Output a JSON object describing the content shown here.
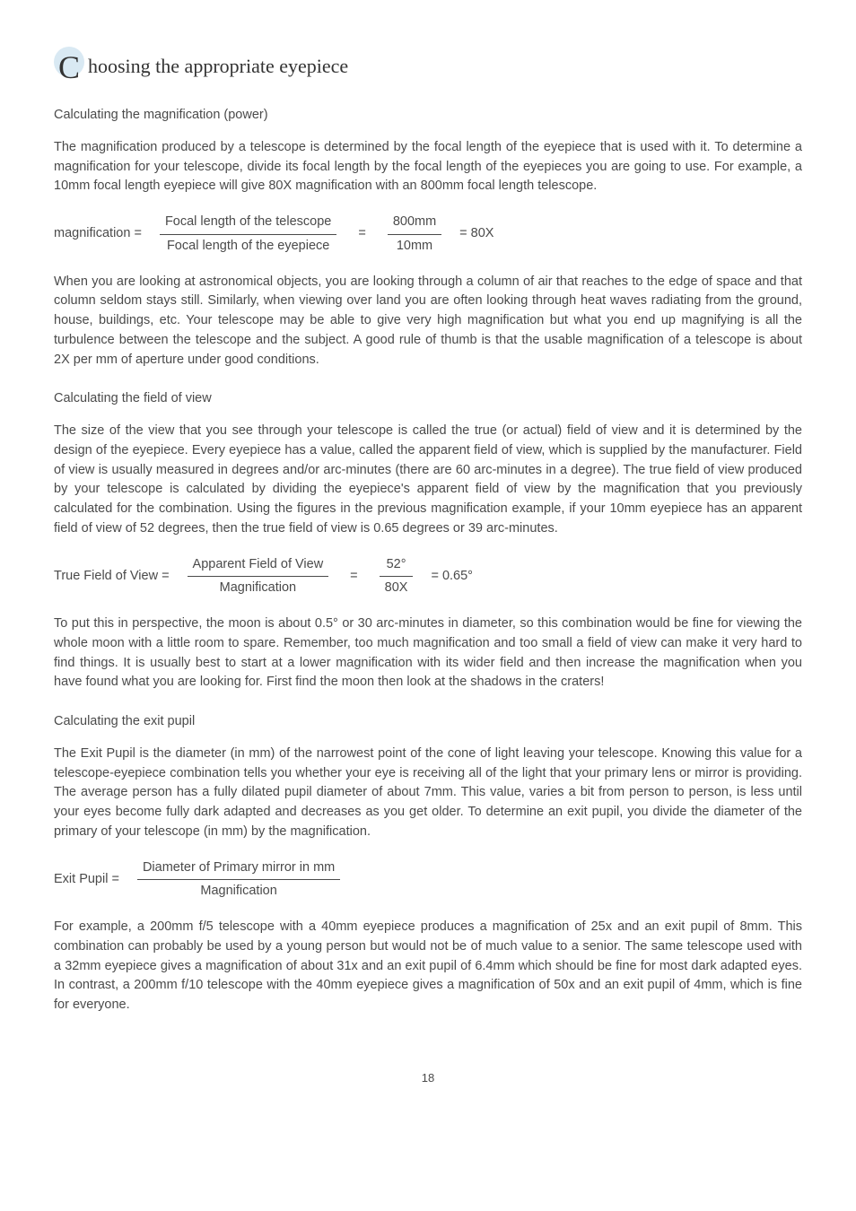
{
  "heading": {
    "capital": "C",
    "rest": "hoosing the appropriate eyepiece"
  },
  "section1": {
    "title": "Calculating the magnification (power)",
    "p1": "The magnification produced by a telescope is determined by the focal length of the eyepiece that is used with it. To determine a magnification for your telescope, divide its focal length by the focal length of the eyepieces you are going to use. For example, a 10mm focal length eyepiece will give 80X magnification with an 800mm focal length telescope.",
    "formula": {
      "lhs": "magnification =",
      "frac1_num": "Focal length of the telescope",
      "frac1_den": "Focal length of the eyepiece",
      "frac2_num": "800mm",
      "frac2_den": "10mm",
      "result": "=  80X"
    },
    "p2": "When you are looking at astronomical objects, you are looking through a column of air that reaches to the edge of space and that column seldom stays still. Similarly, when viewing over land you are often looking through heat waves radiating from the ground, house, buildings, etc. Your telescope may be able to give very high magnification but what you end up magnifying is all the turbulence between the telescope and the subject. A good rule of thumb is that the usable magnification of a telescope is about 2X per mm of aperture under good conditions."
  },
  "section2": {
    "title": "Calculating the field of view",
    "p1": "The size of the view that you see through your telescope is called the true (or actual) field of view and it is determined by the design of the eyepiece. Every eyepiece has a value, called the apparent field of view, which is supplied by the manufacturer. Field of view is usually measured in degrees and/or arc-minutes (there are 60 arc-minutes in a degree). The true field of view produced by your telescope is calculated by dividing the eyepiece's apparent field of view by the magnification that you previously calculated for the combination. Using the figures in the previous magnification example, if your 10mm eyepiece has an apparent field of view of 52 degrees, then the true field of view is 0.65 degrees or 39 arc-minutes.",
    "formula": {
      "lhs": "True Field of View =",
      "frac1_num": "Apparent Field of View",
      "frac1_den": "Magnification",
      "frac2_num": "52°",
      "frac2_den": "80X",
      "result": "=  0.65°"
    },
    "p2": "To put this in perspective, the moon is about 0.5° or 30 arc-minutes in diameter, so this combination would be fine for viewing the whole moon with a little room to spare. Remember, too much magnification and too small a field of view can make it very hard to find things. It is usually best to start at a lower magnification with its wider field and then increase the magnification when you have found what you are looking for. First find the moon then look at the shadows in the craters!"
  },
  "section3": {
    "title": "Calculating the exit pupil",
    "p1": "The Exit Pupil is the diameter (in mm) of the narrowest point of the cone of light leaving your telescope. Knowing this value for a telescope-eyepiece combination tells you whether your eye is receiving all of the light that your primary lens or mirror is providing. The average person has a fully dilated pupil diameter of about 7mm. This value, varies a bit from person to person, is less until your eyes become fully dark adapted and decreases as you get older. To determine an exit pupil, you divide the diameter of the primary of your telescope (in mm) by the magnification.",
    "formula": {
      "lhs": "Exit Pupil =",
      "frac1_num": "Diameter of Primary mirror in mm",
      "frac1_den": "Magnification"
    },
    "p2": "For example, a 200mm f/5 telescope with a 40mm eyepiece produces a magnification of 25x and an exit pupil of 8mm. This combination can probably be used by a young person but would not be of much value to a senior. The same telescope used with a 32mm eyepiece gives a magnification of about 31x and an exit pupil of 6.4mm which should be fine for most dark adapted eyes. In contrast, a 200mm f/10 telescope with the 40mm eyepiece gives a magnification of 50x and an exit pupil of 4mm, which is fine for everyone."
  },
  "page_number": "18"
}
